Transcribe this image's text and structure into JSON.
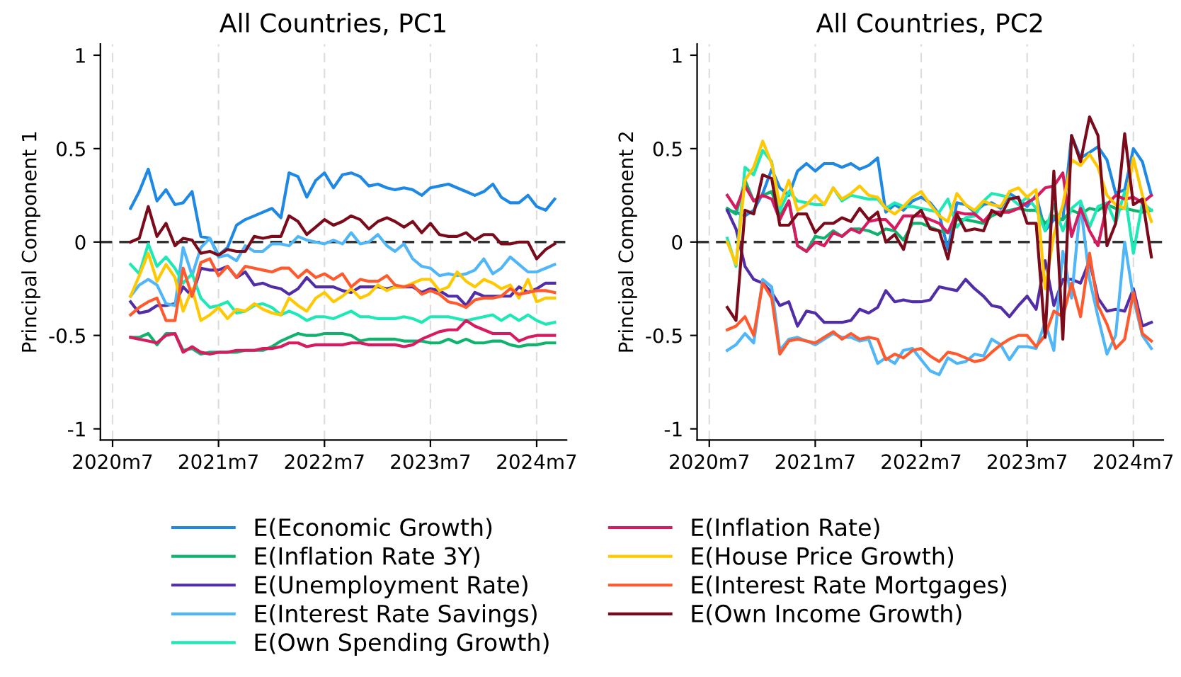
{
  "chart_data": [
    {
      "type": "line",
      "title": "All Countries, PC1",
      "ylabel": "Principal Component 1",
      "x": [
        "2020-09",
        "2020-10",
        "2020-11",
        "2020-12",
        "2021-01",
        "2021-02",
        "2021-03",
        "2021-04",
        "2021-05",
        "2021-06",
        "2021-07",
        "2021-08",
        "2021-09",
        "2021-10",
        "2021-11",
        "2021-12",
        "2022-01",
        "2022-02",
        "2022-03",
        "2022-04",
        "2022-05",
        "2022-06",
        "2022-07",
        "2022-08",
        "2022-09",
        "2022-10",
        "2022-11",
        "2022-12",
        "2023-01",
        "2023-02",
        "2023-03",
        "2023-04",
        "2023-05",
        "2023-06",
        "2023-07",
        "2023-08",
        "2023-09",
        "2023-10",
        "2023-11",
        "2023-12",
        "2024-01",
        "2024-02",
        "2024-03",
        "2024-04",
        "2024-05",
        "2024-06",
        "2024-07",
        "2024-08",
        "2024-09"
      ],
      "xlim": [
        "2020-05-20",
        "2024-10-12"
      ],
      "xticks": [
        {
          "value": "2020-07",
          "label": "2020m7"
        },
        {
          "value": "2021-07",
          "label": "2021m7"
        },
        {
          "value": "2022-07",
          "label": "2022m7"
        },
        {
          "value": "2023-07",
          "label": "2023m7"
        },
        {
          "value": "2024-07",
          "label": "2024m7"
        }
      ],
      "ylim": [
        -1.06,
        1.06
      ],
      "yticks": [
        -1,
        -0.5,
        0,
        0.5,
        1
      ],
      "grid": "x",
      "legend": "bottom",
      "ref_lines": [
        {
          "axis": "y",
          "value": 0,
          "color": "#333333",
          "line_style": "dashed"
        }
      ],
      "series": [
        {
          "name": "E(Economic Growth)",
          "color": "#1e88e5",
          "values": [
            0.18,
            0.27,
            0.39,
            0.22,
            0.28,
            0.2,
            0.21,
            0.27,
            0.03,
            0.02,
            -0.07,
            -0.03,
            0.09,
            0.12,
            0.14,
            0.16,
            0.18,
            0.13,
            0.37,
            0.35,
            0.24,
            0.33,
            0.37,
            0.29,
            0.36,
            0.37,
            0.35,
            0.3,
            0.31,
            0.29,
            0.28,
            0.29,
            0.28,
            0.25,
            0.29,
            0.3,
            0.31,
            0.29,
            0.27,
            0.25,
            0.27,
            0.31,
            0.24,
            0.21,
            0.21,
            0.25,
            0.19,
            0.17,
            0.23
          ]
        },
        {
          "name": "E(Inflation Rate 3Y)",
          "color": "#0fb36e",
          "values": [
            -0.51,
            -0.51,
            -0.49,
            -0.55,
            -0.49,
            -0.49,
            -0.58,
            -0.57,
            -0.6,
            -0.59,
            -0.59,
            -0.59,
            -0.59,
            -0.58,
            -0.58,
            -0.58,
            -0.56,
            -0.53,
            -0.51,
            -0.49,
            -0.5,
            -0.5,
            -0.49,
            -0.49,
            -0.49,
            -0.5,
            -0.53,
            -0.52,
            -0.52,
            -0.52,
            -0.52,
            -0.53,
            -0.53,
            -0.53,
            -0.54,
            -0.54,
            -0.52,
            -0.54,
            -0.52,
            -0.54,
            -0.54,
            -0.53,
            -0.53,
            -0.55,
            -0.56,
            -0.55,
            -0.55,
            -0.54,
            -0.54
          ]
        },
        {
          "name": "E(Unemployment Rate)",
          "color": "#512da8",
          "values": [
            -0.32,
            -0.38,
            -0.37,
            -0.34,
            -0.34,
            -0.33,
            -0.24,
            -0.29,
            -0.14,
            -0.15,
            -0.15,
            -0.13,
            -0.19,
            -0.16,
            -0.23,
            -0.22,
            -0.24,
            -0.25,
            -0.28,
            -0.25,
            -0.19,
            -0.24,
            -0.24,
            -0.24,
            -0.26,
            -0.27,
            -0.24,
            -0.24,
            -0.24,
            -0.25,
            -0.24,
            -0.24,
            -0.24,
            -0.27,
            -0.25,
            -0.26,
            -0.29,
            -0.29,
            -0.34,
            -0.27,
            -0.29,
            -0.29,
            -0.29,
            -0.29,
            -0.24,
            -0.27,
            -0.25,
            -0.22,
            -0.22
          ]
        },
        {
          "name": "E(Interest Rate Savings)",
          "color": "#4fb6f7",
          "values": [
            -0.29,
            -0.23,
            -0.2,
            -0.23,
            -0.33,
            -0.34,
            -0.03,
            -0.18,
            -0.03,
            0.02,
            -0.08,
            -0.07,
            -0.1,
            -0.02,
            -0.05,
            -0.05,
            -0.01,
            -0.01,
            -0.02,
            0.03,
            0.01,
            0.0,
            -0.01,
            0.01,
            -0.01,
            0.05,
            -0.01,
            0.0,
            0.04,
            -0.02,
            -0.05,
            -0.01,
            -0.09,
            -0.13,
            -0.14,
            -0.18,
            -0.17,
            -0.18,
            -0.17,
            -0.15,
            -0.09,
            -0.17,
            -0.14,
            -0.08,
            -0.12,
            -0.16,
            -0.16,
            -0.14,
            -0.12
          ]
        },
        {
          "name": "E(Own Spending Growth)",
          "color": "#1de9b6",
          "values": [
            -0.12,
            -0.17,
            -0.01,
            -0.13,
            -0.08,
            -0.14,
            -0.22,
            -0.17,
            -0.3,
            -0.35,
            -0.34,
            -0.32,
            -0.38,
            -0.37,
            -0.34,
            -0.33,
            -0.35,
            -0.39,
            -0.37,
            -0.39,
            -0.42,
            -0.4,
            -0.4,
            -0.41,
            -0.39,
            -0.37,
            -0.4,
            -0.4,
            -0.41,
            -0.41,
            -0.41,
            -0.4,
            -0.41,
            -0.43,
            -0.4,
            -0.4,
            -0.4,
            -0.41,
            -0.42,
            -0.41,
            -0.4,
            -0.39,
            -0.42,
            -0.39,
            -0.42,
            -0.39,
            -0.42,
            -0.44,
            -0.43
          ]
        },
        {
          "name": "E(Inflation Rate)",
          "color": "#d81b60",
          "values": [
            -0.51,
            -0.52,
            -0.53,
            -0.54,
            -0.5,
            -0.49,
            -0.59,
            -0.56,
            -0.59,
            -0.6,
            -0.59,
            -0.59,
            -0.58,
            -0.58,
            -0.58,
            -0.57,
            -0.57,
            -0.56,
            -0.54,
            -0.54,
            -0.56,
            -0.55,
            -0.55,
            -0.55,
            -0.55,
            -0.54,
            -0.54,
            -0.55,
            -0.55,
            -0.55,
            -0.55,
            -0.56,
            -0.55,
            -0.52,
            -0.5,
            -0.48,
            -0.47,
            -0.47,
            -0.42,
            -0.45,
            -0.47,
            -0.49,
            -0.49,
            -0.49,
            -0.53,
            -0.51,
            -0.5,
            -0.5,
            -0.5
          ]
        },
        {
          "name": "E(House Price Growth)",
          "color": "#ffc800",
          "values": [
            -0.29,
            -0.18,
            -0.06,
            -0.21,
            -0.12,
            -0.19,
            -0.37,
            -0.25,
            -0.42,
            -0.39,
            -0.35,
            -0.41,
            -0.36,
            -0.37,
            -0.33,
            -0.36,
            -0.38,
            -0.39,
            -0.3,
            -0.34,
            -0.37,
            -0.3,
            -0.27,
            -0.32,
            -0.29,
            -0.25,
            -0.3,
            -0.28,
            -0.23,
            -0.26,
            -0.24,
            -0.24,
            -0.22,
            -0.2,
            -0.2,
            -0.26,
            -0.24,
            -0.16,
            -0.21,
            -0.24,
            -0.2,
            -0.22,
            -0.25,
            -0.23,
            -0.3,
            -0.2,
            -0.32,
            -0.3,
            -0.3
          ]
        },
        {
          "name": "E(Interest Rate Mortgages)",
          "color": "#ff5a2e",
          "values": [
            -0.39,
            -0.35,
            -0.32,
            -0.3,
            -0.42,
            -0.42,
            -0.14,
            -0.29,
            -0.11,
            -0.09,
            -0.18,
            -0.13,
            -0.19,
            -0.13,
            -0.14,
            -0.15,
            -0.16,
            -0.14,
            -0.14,
            -0.19,
            -0.15,
            -0.19,
            -0.17,
            -0.2,
            -0.17,
            -0.24,
            -0.2,
            -0.21,
            -0.21,
            -0.18,
            -0.23,
            -0.24,
            -0.23,
            -0.28,
            -0.26,
            -0.28,
            -0.32,
            -0.33,
            -0.35,
            -0.31,
            -0.3,
            -0.3,
            -0.29,
            -0.25,
            -0.28,
            -0.27,
            -0.26,
            -0.26,
            -0.27
          ]
        },
        {
          "name": "E(Own Income Growth)",
          "color": "#7b0a1a",
          "values": [
            0.0,
            0.02,
            0.19,
            0.03,
            0.1,
            -0.02,
            0.02,
            0.01,
            -0.06,
            -0.05,
            -0.07,
            -0.04,
            -0.05,
            -0.05,
            0.03,
            0.02,
            0.03,
            0.03,
            0.14,
            0.11,
            0.04,
            0.08,
            0.12,
            0.09,
            0.11,
            0.14,
            0.12,
            0.07,
            0.11,
            0.13,
            0.11,
            0.08,
            0.11,
            0.05,
            0.1,
            0.04,
            0.03,
            0.03,
            0.05,
            0.01,
            0.04,
            0.04,
            -0.01,
            -0.01,
            0.0,
            0.0,
            -0.09,
            -0.04,
            -0.01
          ]
        }
      ]
    },
    {
      "type": "line",
      "title": "All Countries, PC2",
      "ylabel": "Principal Component 2",
      "x": [
        "2020-09",
        "2020-10",
        "2020-11",
        "2020-12",
        "2021-01",
        "2021-02",
        "2021-03",
        "2021-04",
        "2021-05",
        "2021-06",
        "2021-07",
        "2021-08",
        "2021-09",
        "2021-10",
        "2021-11",
        "2021-12",
        "2022-01",
        "2022-02",
        "2022-03",
        "2022-04",
        "2022-05",
        "2022-06",
        "2022-07",
        "2022-08",
        "2022-09",
        "2022-10",
        "2022-11",
        "2022-12",
        "2023-01",
        "2023-02",
        "2023-03",
        "2023-04",
        "2023-05",
        "2023-06",
        "2023-07",
        "2023-08",
        "2023-09",
        "2023-10",
        "2023-11",
        "2023-12",
        "2024-01",
        "2024-02",
        "2024-03",
        "2024-04",
        "2024-05",
        "2024-06",
        "2024-07",
        "2024-08",
        "2024-09"
      ],
      "xlim": [
        "2020-05-20",
        "2024-10-12"
      ],
      "xticks": [
        {
          "value": "2020-07",
          "label": "2020m7"
        },
        {
          "value": "2021-07",
          "label": "2021m7"
        },
        {
          "value": "2022-07",
          "label": "2022m7"
        },
        {
          "value": "2023-07",
          "label": "2023m7"
        },
        {
          "value": "2024-07",
          "label": "2024m7"
        }
      ],
      "ylim": [
        -1.06,
        1.06
      ],
      "yticks": [
        -1,
        -0.5,
        0,
        0.5,
        1
      ],
      "grid": "x",
      "ref_lines": [
        {
          "axis": "y",
          "value": 0,
          "color": "#333333",
          "line_style": "dashed"
        }
      ],
      "series": [
        {
          "name": "E(Economic Growth)",
          "color": "#1e88e5",
          "values": [
            0.17,
            0.16,
            0.14,
            0.17,
            0.26,
            0.39,
            0.29,
            0.25,
            0.38,
            0.42,
            0.38,
            0.42,
            0.42,
            0.4,
            0.42,
            0.39,
            0.41,
            0.45,
            0.16,
            0.2,
            0.17,
            0.22,
            0.24,
            0.21,
            0.15,
            -0.04,
            0.21,
            0.2,
            0.16,
            0.2,
            0.21,
            0.18,
            0.26,
            0.23,
            0.19,
            0.25,
            0.06,
            0.12,
            0.12,
            0.57,
            0.45,
            0.48,
            0.51,
            0.44,
            0.26,
            0.28,
            0.5,
            0.43,
            0.25
          ]
        },
        {
          "name": "E(Inflation Rate 3Y)",
          "color": "#0fb36e",
          "values": [
            0.18,
            0.15,
            0.33,
            0.22,
            0.25,
            0.27,
            0.14,
            0.22,
            -0.02,
            -0.05,
            0.03,
            0.02,
            0.06,
            0.03,
            0.07,
            0.07,
            0.06,
            0.04,
            0.07,
            0.06,
            0.01,
            0.1,
            0.1,
            0.08,
            0.06,
            0.05,
            0.12,
            0.12,
            0.11,
            0.1,
            0.14,
            0.16,
            0.17,
            0.18,
            0.17,
            0.17,
            0.1,
            0.14,
            0.12,
            0.17,
            0.15,
            0.18,
            0.17,
            0.2,
            0.18,
            0.18,
            0.17,
            0.16,
            0.17
          ]
        },
        {
          "name": "E(Unemployment Rate)",
          "color": "#512da8",
          "values": [
            0.17,
            0.07,
            -0.13,
            -0.2,
            -0.22,
            -0.27,
            -0.34,
            -0.32,
            -0.45,
            -0.37,
            -0.38,
            -0.43,
            -0.43,
            -0.43,
            -0.42,
            -0.36,
            -0.38,
            -0.35,
            -0.26,
            -0.32,
            -0.31,
            -0.32,
            -0.32,
            -0.31,
            -0.24,
            -0.25,
            -0.26,
            -0.2,
            -0.25,
            -0.29,
            -0.34,
            -0.35,
            -0.4,
            -0.34,
            -0.29,
            -0.36,
            -0.1,
            -0.34,
            -0.2,
            -0.2,
            -0.22,
            -0.1,
            -0.3,
            -0.37,
            -0.36,
            -0.37,
            -0.25,
            -0.45,
            -0.43
          ]
        },
        {
          "name": "E(Interest Rate Savings)",
          "color": "#4fb6f7",
          "values": [
            -0.58,
            -0.55,
            -0.49,
            -0.54,
            -0.2,
            -0.24,
            -0.58,
            -0.52,
            -0.51,
            -0.53,
            -0.55,
            -0.52,
            -0.49,
            -0.51,
            -0.51,
            -0.53,
            -0.52,
            -0.65,
            -0.62,
            -0.65,
            -0.58,
            -0.57,
            -0.63,
            -0.69,
            -0.71,
            -0.62,
            -0.65,
            -0.64,
            -0.6,
            -0.61,
            -0.52,
            -0.55,
            -0.63,
            -0.56,
            -0.56,
            -0.57,
            -0.43,
            -0.58,
            -0.05,
            -0.3,
            0.2,
            -0.2,
            -0.4,
            -0.6,
            -0.5,
            0.0,
            -0.3,
            -0.5,
            -0.57
          ]
        },
        {
          "name": "E(Own Spending Growth)",
          "color": "#1de9b6",
          "values": [
            0.02,
            -0.13,
            0.4,
            0.36,
            0.49,
            0.43,
            0.17,
            0.27,
            0.22,
            0.21,
            0.2,
            0.2,
            0.29,
            0.22,
            0.25,
            0.24,
            0.23,
            0.23,
            0.18,
            0.21,
            0.19,
            0.19,
            0.18,
            0.17,
            0.16,
            0.23,
            0.08,
            0.13,
            0.14,
            0.22,
            0.26,
            0.25,
            0.24,
            0.2,
            0.24,
            0.18,
            0.06,
            0.2,
            0.06,
            0.18,
            0.22,
            0.08,
            0.19,
            0.21,
            0.1,
            0.27,
            -0.06,
            0.21,
            0.17
          ]
        },
        {
          "name": "E(Inflation Rate)",
          "color": "#d81b60",
          "values": [
            0.25,
            0.18,
            0.3,
            0.22,
            0.25,
            0.23,
            0.12,
            0.22,
            -0.02,
            -0.05,
            0.0,
            -0.02,
            0.05,
            0.03,
            0.07,
            0.05,
            0.11,
            0.12,
            0.12,
            0.07,
            0.14,
            0.14,
            0.14,
            0.12,
            0.1,
            0.05,
            0.16,
            0.15,
            0.15,
            0.11,
            0.16,
            0.16,
            0.16,
            0.18,
            0.21,
            0.24,
            0.29,
            0.3,
            0.37,
            0.03,
            0.18,
            0.06,
            -0.02,
            0.2,
            0.25,
            0.23,
            0.24,
            0.21,
            0.25
          ]
        },
        {
          "name": "E(House Price Growth)",
          "color": "#ffc800",
          "values": [
            0.0,
            -0.12,
            0.33,
            0.4,
            0.54,
            0.42,
            0.2,
            0.33,
            0.17,
            0.2,
            0.25,
            0.2,
            0.29,
            0.23,
            0.26,
            0.3,
            0.25,
            0.24,
            0.18,
            0.15,
            0.19,
            0.24,
            0.27,
            0.2,
            0.14,
            0.11,
            0.26,
            0.2,
            0.17,
            0.22,
            0.2,
            0.19,
            0.27,
            0.29,
            0.24,
            0.28,
            -0.25,
            0.04,
            0.2,
            0.44,
            0.41,
            0.47,
            0.4,
            0.25,
            0.2,
            0.18,
            0.45,
            0.25,
            0.11
          ]
        },
        {
          "name": "E(Interest Rate Mortgages)",
          "color": "#ff5a2e",
          "values": [
            -0.47,
            -0.45,
            -0.4,
            -0.5,
            -0.22,
            -0.3,
            -0.6,
            -0.53,
            -0.52,
            -0.53,
            -0.54,
            -0.51,
            -0.48,
            -0.52,
            -0.49,
            -0.52,
            -0.51,
            -0.52,
            -0.63,
            -0.6,
            -0.62,
            -0.58,
            -0.57,
            -0.61,
            -0.64,
            -0.59,
            -0.6,
            -0.62,
            -0.64,
            -0.63,
            -0.59,
            -0.55,
            -0.52,
            -0.5,
            -0.5,
            -0.56,
            -0.5,
            -0.37,
            -0.4,
            -0.22,
            -0.4,
            -0.06,
            -0.34,
            -0.44,
            -0.57,
            -0.52,
            -0.27,
            -0.49,
            -0.53
          ]
        },
        {
          "name": "E(Own Income Growth)",
          "color": "#7b0a1a",
          "values": [
            -0.35,
            -0.42,
            0.17,
            0.15,
            0.36,
            0.34,
            0.09,
            0.09,
            0.15,
            0.15,
            0.05,
            0.1,
            0.1,
            0.13,
            0.11,
            0.18,
            0.12,
            0.16,
            0.0,
            0.04,
            -0.04,
            0.13,
            0.17,
            0.07,
            0.06,
            -0.09,
            0.15,
            0.06,
            0.07,
            0.06,
            0.17,
            0.14,
            0.23,
            0.24,
            0.1,
            0.1,
            -0.51,
            0.38,
            -0.52,
            0.57,
            0.43,
            0.67,
            0.57,
            -0.02,
            0.1,
            0.58,
            0.2,
            0.23,
            -0.08
          ]
        }
      ]
    }
  ]
}
